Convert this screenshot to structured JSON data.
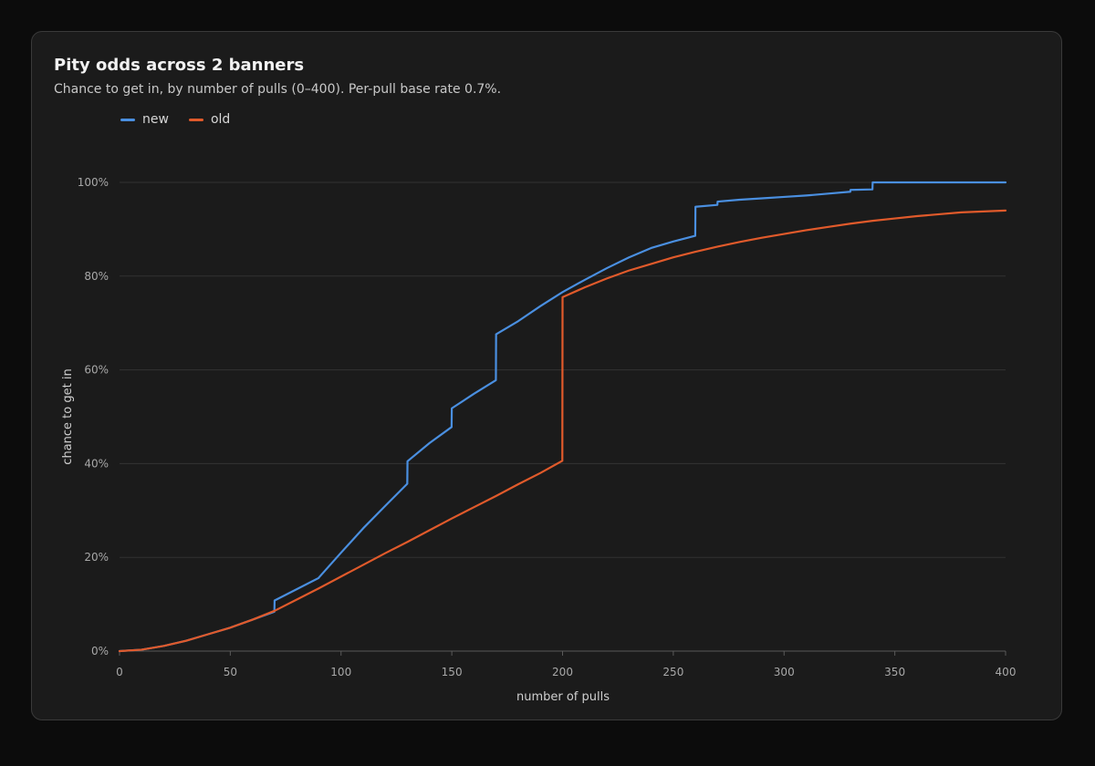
{
  "chart_data": {
    "type": "line",
    "title": "Pity odds across 2 banners",
    "subtitle": "Chance to get in, by number of pulls (0–400). Per-pull base rate 0.7%.",
    "xlabel": "number of pulls",
    "ylabel": "chance to get in",
    "xlim": [
      0,
      400
    ],
    "ylim": [
      0,
      100
    ],
    "x_ticks": [
      0,
      50,
      100,
      150,
      200,
      250,
      300,
      350,
      400
    ],
    "x_tick_labels": [
      "0",
      "50",
      "100",
      "150",
      "200",
      "250",
      "300",
      "350",
      "400"
    ],
    "y_ticks": [
      0,
      20,
      40,
      60,
      80,
      100
    ],
    "y_tick_labels": [
      "0%",
      "20%",
      "40%",
      "60%",
      "80%",
      "100%"
    ],
    "grid": true,
    "legend_position": "top-left",
    "series": [
      {
        "name": "new",
        "color": "#4a8fe0",
        "points": [
          [
            0,
            0
          ],
          [
            10,
            0.3
          ],
          [
            20,
            1.1
          ],
          [
            30,
            2.2
          ],
          [
            40,
            3.6
          ],
          [
            50,
            5.0
          ],
          [
            60,
            6.7
          ],
          [
            69.9,
            8.4
          ],
          [
            70,
            10.8
          ],
          [
            80,
            13.2
          ],
          [
            89.9,
            15.6
          ],
          [
            90,
            15.7
          ],
          [
            100,
            21.0
          ],
          [
            110,
            26.2
          ],
          [
            120,
            31.0
          ],
          [
            129.9,
            35.7
          ],
          [
            130,
            40.5
          ],
          [
            140,
            44.4
          ],
          [
            149.9,
            47.8
          ],
          [
            150,
            51.8
          ],
          [
            160,
            54.9
          ],
          [
            169.9,
            57.8
          ],
          [
            170,
            67.6
          ],
          [
            180,
            70.4
          ],
          [
            190,
            73.6
          ],
          [
            200,
            76.6
          ],
          [
            210,
            79.2
          ],
          [
            220,
            81.7
          ],
          [
            230,
            84.0
          ],
          [
            240,
            86.0
          ],
          [
            250,
            87.4
          ],
          [
            259.9,
            88.6
          ],
          [
            260,
            94.8
          ],
          [
            269.9,
            95.2
          ],
          [
            270,
            95.9
          ],
          [
            280,
            96.3
          ],
          [
            290,
            96.6
          ],
          [
            300,
            96.9
          ],
          [
            310,
            97.2
          ],
          [
            320,
            97.6
          ],
          [
            329.9,
            98.0
          ],
          [
            330,
            98.4
          ],
          [
            339.9,
            98.5
          ],
          [
            340,
            100
          ],
          [
            370,
            100
          ],
          [
            400,
            100
          ]
        ]
      },
      {
        "name": "old",
        "color": "#e05a2b",
        "points": [
          [
            0,
            0
          ],
          [
            10,
            0.3
          ],
          [
            20,
            1.1
          ],
          [
            30,
            2.2
          ],
          [
            40,
            3.6
          ],
          [
            50,
            5.0
          ],
          [
            60,
            6.7
          ],
          [
            70,
            8.6
          ],
          [
            80,
            11.0
          ],
          [
            90,
            13.4
          ],
          [
            100,
            15.9
          ],
          [
            110,
            18.4
          ],
          [
            120,
            20.9
          ],
          [
            130,
            23.3
          ],
          [
            140,
            25.8
          ],
          [
            150,
            28.3
          ],
          [
            160,
            30.7
          ],
          [
            170,
            33.1
          ],
          [
            180,
            35.6
          ],
          [
            190,
            38.0
          ],
          [
            199.9,
            40.6
          ],
          [
            200,
            75.5
          ],
          [
            210,
            77.6
          ],
          [
            220,
            79.5
          ],
          [
            230,
            81.2
          ],
          [
            240,
            82.6
          ],
          [
            250,
            84.0
          ],
          [
            260,
            85.2
          ],
          [
            270,
            86.3
          ],
          [
            280,
            87.3
          ],
          [
            290,
            88.2
          ],
          [
            300,
            89.0
          ],
          [
            310,
            89.8
          ],
          [
            320,
            90.5
          ],
          [
            330,
            91.2
          ],
          [
            340,
            91.8
          ],
          [
            350,
            92.3
          ],
          [
            360,
            92.8
          ],
          [
            370,
            93.2
          ],
          [
            380,
            93.6
          ],
          [
            390,
            93.8
          ],
          [
            400,
            94.0
          ]
        ]
      }
    ]
  }
}
